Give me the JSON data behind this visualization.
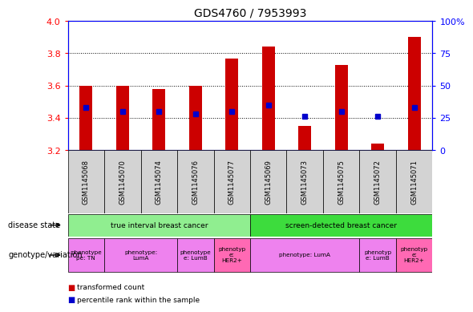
{
  "title": "GDS4760 / 7953993",
  "samples": [
    "GSM1145068",
    "GSM1145070",
    "GSM1145074",
    "GSM1145076",
    "GSM1145077",
    "GSM1145069",
    "GSM1145073",
    "GSM1145075",
    "GSM1145072",
    "GSM1145071"
  ],
  "transformed_count": [
    3.6,
    3.6,
    3.58,
    3.6,
    3.77,
    3.84,
    3.35,
    3.73,
    3.24,
    3.9
  ],
  "percentile_rank": [
    33,
    30,
    30,
    28,
    30,
    35,
    26,
    30,
    26,
    33
  ],
  "ylim": [
    3.2,
    4.0
  ],
  "yticks": [
    3.2,
    3.4,
    3.6,
    3.8,
    4.0
  ],
  "y2lim": [
    0,
    100
  ],
  "y2ticks": [
    0,
    25,
    50,
    75,
    100
  ],
  "y2ticklabels": [
    "0",
    "25",
    "50",
    "75",
    "100%"
  ],
  "bar_color": "#cc0000",
  "dot_color": "#0000cc",
  "disease_state_row": [
    {
      "label": "true interval breast cancer",
      "start": 0,
      "end": 5,
      "color": "#90ee90"
    },
    {
      "label": "screen-detected breast cancer",
      "start": 5,
      "end": 10,
      "color": "#3ddc3d"
    }
  ],
  "genotype_row": [
    {
      "label": "phenotype\npe: TN",
      "start": 0,
      "end": 1,
      "color": "#ee82ee"
    },
    {
      "label": "phenotype:\nLumA",
      "start": 1,
      "end": 3,
      "color": "#ee82ee"
    },
    {
      "label": "phenotype\ne: LumB",
      "start": 3,
      "end": 4,
      "color": "#ee82ee"
    },
    {
      "label": "phenotyp\ne:\nHER2+",
      "start": 4,
      "end": 5,
      "color": "#ff69b4"
    },
    {
      "label": "phenotype: LumA",
      "start": 5,
      "end": 8,
      "color": "#ee82ee"
    },
    {
      "label": "phenotyp\ne: LumB",
      "start": 8,
      "end": 9,
      "color": "#ee82ee"
    },
    {
      "label": "phenotyp\ne:\nHER2+",
      "start": 9,
      "end": 10,
      "color": "#ff69b4"
    }
  ],
  "left_label_disease": "disease state",
  "left_label_genotype": "genotype/variation",
  "legend_items": [
    {
      "color": "#cc0000",
      "label": "transformed count"
    },
    {
      "color": "#0000cc",
      "label": "percentile rank within the sample"
    }
  ],
  "bar_width": 0.35
}
